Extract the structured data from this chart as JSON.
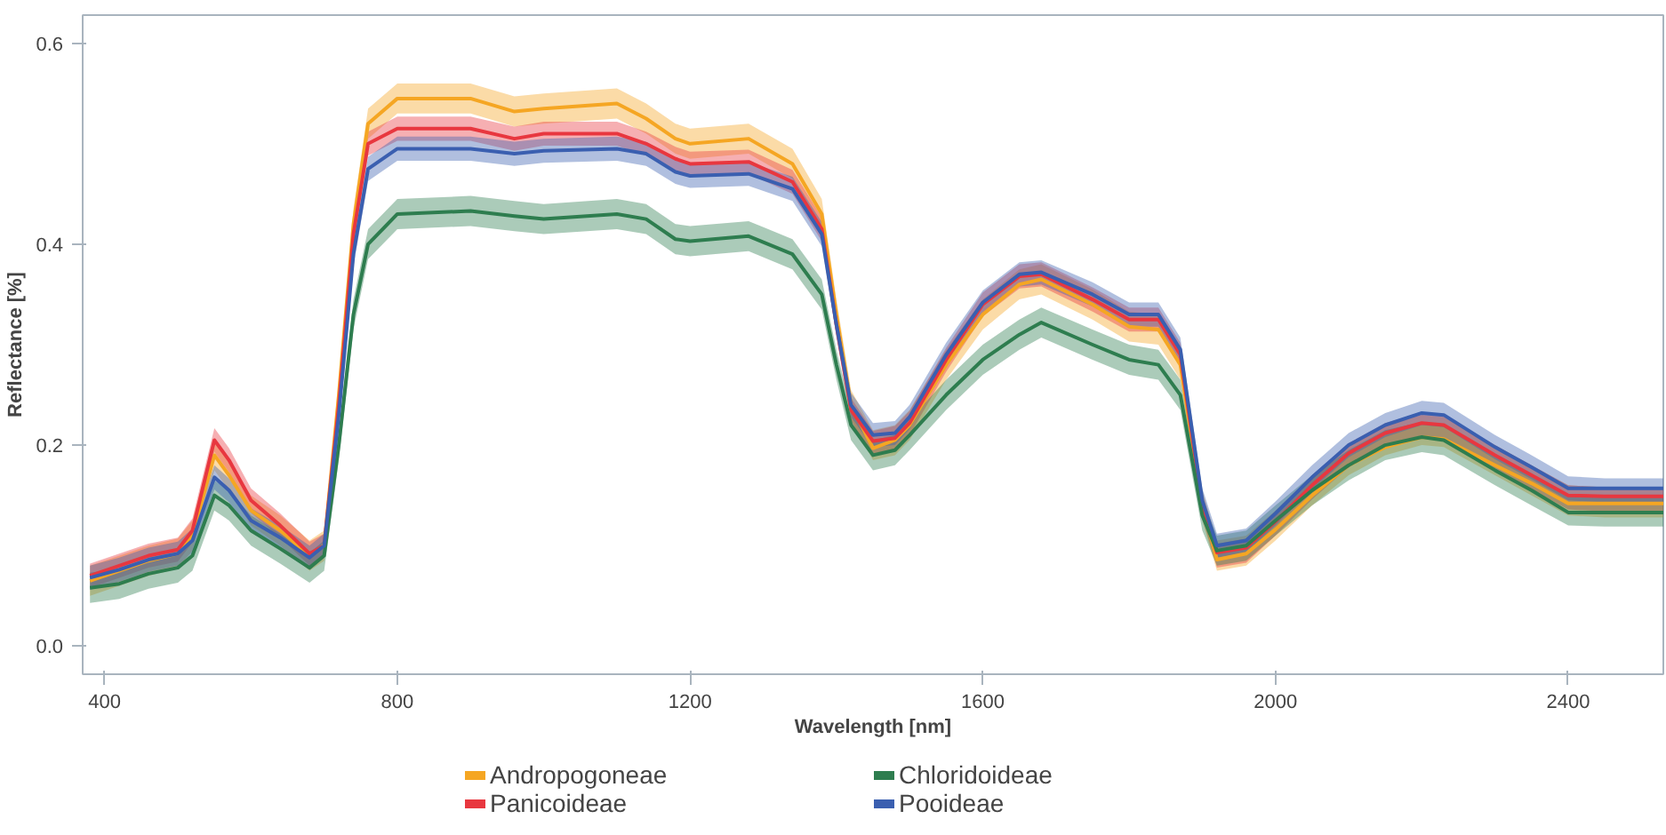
{
  "chart_data": {
    "type": "line",
    "xlabel": "Wavelength [nm]",
    "ylabel": "Reflectance [%]",
    "x": [
      380,
      420,
      460,
      500,
      520,
      550,
      570,
      600,
      640,
      680,
      700,
      720,
      740,
      760,
      800,
      900,
      960,
      1000,
      1100,
      1140,
      1180,
      1200,
      1280,
      1340,
      1380,
      1400,
      1420,
      1450,
      1480,
      1500,
      1550,
      1600,
      1650,
      1680,
      1750,
      1800,
      1840,
      1870,
      1900,
      1920,
      1960,
      2000,
      2050,
      2100,
      2150,
      2200,
      2230,
      2300,
      2350,
      2400,
      2450,
      2530
    ],
    "series": [
      {
        "name": "Andropogoneae",
        "color": "#f5a623",
        "values": [
          0.065,
          0.075,
          0.085,
          0.092,
          0.11,
          0.19,
          0.17,
          0.135,
          0.115,
          0.09,
          0.1,
          0.25,
          0.42,
          0.52,
          0.545,
          0.545,
          0.532,
          0.535,
          0.54,
          0.525,
          0.505,
          0.5,
          0.505,
          0.48,
          0.43,
          0.33,
          0.24,
          0.197,
          0.205,
          0.22,
          0.28,
          0.33,
          0.36,
          0.365,
          0.34,
          0.318,
          0.315,
          0.28,
          0.14,
          0.086,
          0.092,
          0.116,
          0.15,
          0.18,
          0.198,
          0.208,
          0.206,
          0.18,
          0.162,
          0.142,
          0.142,
          0.142
        ],
        "lower": [
          0.05,
          0.06,
          0.07,
          0.077,
          0.095,
          0.175,
          0.155,
          0.12,
          0.1,
          0.075,
          0.085,
          0.235,
          0.405,
          0.505,
          0.53,
          0.53,
          0.517,
          0.52,
          0.525,
          0.51,
          0.49,
          0.485,
          0.49,
          0.465,
          0.415,
          0.315,
          0.225,
          0.185,
          0.19,
          0.205,
          0.265,
          0.315,
          0.345,
          0.35,
          0.325,
          0.303,
          0.3,
          0.265,
          0.125,
          0.075,
          0.08,
          0.105,
          0.14,
          0.17,
          0.19,
          0.2,
          0.198,
          0.17,
          0.15,
          0.13,
          0.128,
          0.128
        ],
        "upper": [
          0.08,
          0.09,
          0.1,
          0.107,
          0.125,
          0.205,
          0.185,
          0.15,
          0.13,
          0.105,
          0.115,
          0.265,
          0.435,
          0.535,
          0.56,
          0.56,
          0.547,
          0.55,
          0.555,
          0.54,
          0.52,
          0.515,
          0.52,
          0.495,
          0.445,
          0.345,
          0.255,
          0.215,
          0.22,
          0.235,
          0.295,
          0.345,
          0.375,
          0.38,
          0.355,
          0.333,
          0.33,
          0.295,
          0.155,
          0.105,
          0.11,
          0.135,
          0.17,
          0.2,
          0.22,
          0.23,
          0.228,
          0.2,
          0.18,
          0.16,
          0.158,
          0.158
        ]
      },
      {
        "name": "Panicoideae",
        "color": "#e8373f",
        "values": [
          0.07,
          0.08,
          0.09,
          0.096,
          0.115,
          0.205,
          0.185,
          0.145,
          0.12,
          0.092,
          0.1,
          0.24,
          0.41,
          0.5,
          0.515,
          0.515,
          0.505,
          0.51,
          0.51,
          0.5,
          0.485,
          0.48,
          0.482,
          0.462,
          0.415,
          0.32,
          0.235,
          0.204,
          0.207,
          0.222,
          0.285,
          0.34,
          0.368,
          0.37,
          0.345,
          0.325,
          0.325,
          0.29,
          0.14,
          0.093,
          0.098,
          0.124,
          0.16,
          0.192,
          0.212,
          0.222,
          0.22,
          0.19,
          0.17,
          0.15,
          0.149,
          0.149
        ],
        "lower": [
          0.058,
          0.068,
          0.078,
          0.084,
          0.103,
          0.193,
          0.173,
          0.133,
          0.108,
          0.08,
          0.088,
          0.228,
          0.398,
          0.488,
          0.503,
          0.503,
          0.493,
          0.498,
          0.498,
          0.488,
          0.473,
          0.468,
          0.47,
          0.45,
          0.403,
          0.308,
          0.223,
          0.19,
          0.195,
          0.21,
          0.273,
          0.328,
          0.356,
          0.358,
          0.333,
          0.313,
          0.313,
          0.278,
          0.128,
          0.078,
          0.083,
          0.11,
          0.146,
          0.178,
          0.198,
          0.208,
          0.206,
          0.176,
          0.156,
          0.136,
          0.134,
          0.133
        ],
        "upper": [
          0.082,
          0.092,
          0.102,
          0.108,
          0.127,
          0.217,
          0.197,
          0.157,
          0.132,
          0.104,
          0.112,
          0.252,
          0.422,
          0.512,
          0.527,
          0.527,
          0.517,
          0.522,
          0.522,
          0.512,
          0.497,
          0.492,
          0.494,
          0.474,
          0.427,
          0.332,
          0.247,
          0.214,
          0.219,
          0.234,
          0.297,
          0.352,
          0.38,
          0.382,
          0.357,
          0.337,
          0.337,
          0.302,
          0.152,
          0.102,
          0.107,
          0.134,
          0.17,
          0.202,
          0.222,
          0.232,
          0.23,
          0.2,
          0.18,
          0.16,
          0.158,
          0.157
        ]
      },
      {
        "name": "Chloridoideae",
        "color": "#2e7d4f",
        "values": [
          0.058,
          0.062,
          0.072,
          0.078,
          0.09,
          0.15,
          0.14,
          0.115,
          0.097,
          0.078,
          0.09,
          0.2,
          0.33,
          0.4,
          0.43,
          0.433,
          0.428,
          0.425,
          0.43,
          0.425,
          0.405,
          0.403,
          0.408,
          0.39,
          0.35,
          0.28,
          0.22,
          0.19,
          0.195,
          0.21,
          0.25,
          0.285,
          0.31,
          0.322,
          0.3,
          0.285,
          0.28,
          0.25,
          0.13,
          0.095,
          0.1,
          0.125,
          0.155,
          0.18,
          0.2,
          0.208,
          0.205,
          0.175,
          0.155,
          0.133,
          0.133,
          0.133
        ],
        "lower": [
          0.043,
          0.047,
          0.057,
          0.063,
          0.075,
          0.135,
          0.125,
          0.1,
          0.082,
          0.063,
          0.075,
          0.185,
          0.315,
          0.385,
          0.415,
          0.418,
          0.413,
          0.41,
          0.415,
          0.41,
          0.39,
          0.388,
          0.393,
          0.375,
          0.335,
          0.265,
          0.205,
          0.175,
          0.18,
          0.195,
          0.235,
          0.27,
          0.295,
          0.307,
          0.285,
          0.27,
          0.265,
          0.235,
          0.115,
          0.08,
          0.085,
          0.11,
          0.14,
          0.165,
          0.185,
          0.193,
          0.19,
          0.16,
          0.14,
          0.12,
          0.119,
          0.119
        ],
        "upper": [
          0.073,
          0.077,
          0.087,
          0.093,
          0.105,
          0.165,
          0.155,
          0.13,
          0.112,
          0.093,
          0.105,
          0.215,
          0.345,
          0.415,
          0.445,
          0.448,
          0.443,
          0.44,
          0.445,
          0.44,
          0.42,
          0.418,
          0.423,
          0.405,
          0.365,
          0.295,
          0.235,
          0.205,
          0.21,
          0.225,
          0.265,
          0.3,
          0.325,
          0.337,
          0.315,
          0.3,
          0.295,
          0.265,
          0.145,
          0.11,
          0.115,
          0.14,
          0.17,
          0.195,
          0.215,
          0.223,
          0.22,
          0.19,
          0.17,
          0.15,
          0.149,
          0.149
        ]
      },
      {
        "name": "Pooideae",
        "color": "#3a5fb0",
        "values": [
          0.068,
          0.076,
          0.086,
          0.092,
          0.105,
          0.168,
          0.155,
          0.125,
          0.108,
          0.088,
          0.1,
          0.23,
          0.39,
          0.475,
          0.495,
          0.495,
          0.49,
          0.493,
          0.495,
          0.49,
          0.472,
          0.468,
          0.47,
          0.455,
          0.41,
          0.32,
          0.24,
          0.21,
          0.212,
          0.228,
          0.29,
          0.342,
          0.37,
          0.372,
          0.35,
          0.33,
          0.33,
          0.295,
          0.145,
          0.1,
          0.105,
          0.132,
          0.168,
          0.2,
          0.22,
          0.232,
          0.23,
          0.198,
          0.178,
          0.157,
          0.157,
          0.157
        ],
        "lower": [
          0.056,
          0.064,
          0.074,
          0.08,
          0.093,
          0.156,
          0.143,
          0.113,
          0.096,
          0.076,
          0.088,
          0.218,
          0.378,
          0.463,
          0.483,
          0.483,
          0.478,
          0.481,
          0.483,
          0.478,
          0.46,
          0.456,
          0.458,
          0.443,
          0.398,
          0.308,
          0.228,
          0.198,
          0.2,
          0.216,
          0.278,
          0.33,
          0.358,
          0.36,
          0.338,
          0.318,
          0.318,
          0.283,
          0.133,
          0.088,
          0.093,
          0.12,
          0.156,
          0.188,
          0.208,
          0.22,
          0.218,
          0.186,
          0.166,
          0.145,
          0.143,
          0.143
        ],
        "upper": [
          0.08,
          0.088,
          0.098,
          0.104,
          0.117,
          0.18,
          0.167,
          0.137,
          0.12,
          0.1,
          0.112,
          0.242,
          0.402,
          0.487,
          0.507,
          0.507,
          0.502,
          0.505,
          0.507,
          0.502,
          0.484,
          0.48,
          0.482,
          0.467,
          0.422,
          0.332,
          0.252,
          0.222,
          0.224,
          0.24,
          0.302,
          0.354,
          0.382,
          0.384,
          0.362,
          0.342,
          0.342,
          0.307,
          0.157,
          0.112,
          0.117,
          0.144,
          0.18,
          0.212,
          0.232,
          0.244,
          0.242,
          0.21,
          0.19,
          0.169,
          0.167,
          0.167
        ]
      }
    ],
    "xlim": [
      370,
      2530
    ],
    "ylim": [
      -0.028,
      0.628
    ],
    "xticks": [
      400,
      800,
      1200,
      1600,
      2000,
      2400
    ],
    "yticks": [
      {
        "value": 0,
        "label": "0.0"
      },
      0.2,
      0.4,
      0.6
    ],
    "grid": false,
    "legend": "bottom",
    "marker": "none",
    "line_style": "solid"
  }
}
